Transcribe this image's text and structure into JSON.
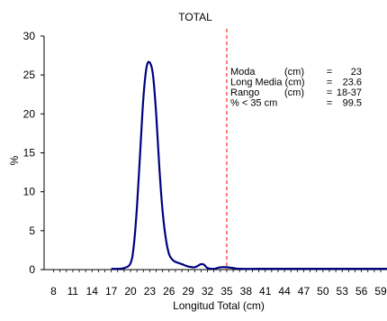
{
  "chart_data": {
    "type": "line",
    "title": "TOTAL",
    "xlabel": "Longitud Total (cm)",
    "ylabel": "%",
    "xlim": [
      8,
      60
    ],
    "ylim": [
      0,
      30
    ],
    "grid": false,
    "legend": "none",
    "x_ticks": [
      8,
      11,
      14,
      17,
      20,
      23,
      26,
      29,
      32,
      35,
      38,
      41,
      44,
      47,
      50,
      53,
      56,
      59
    ],
    "y_ticks": [
      0,
      5,
      10,
      15,
      20,
      25,
      30
    ],
    "series": [
      {
        "color": "#000080",
        "x": [
          17,
          18,
          19,
          20,
          20.5,
          21,
          21.5,
          22,
          22.5,
          23,
          23.5,
          24,
          24.5,
          25,
          25.5,
          26,
          26.5,
          27,
          28,
          29,
          30,
          31,
          31.5,
          32,
          33,
          34,
          35,
          36,
          37,
          40,
          45,
          50,
          55,
          60
        ],
        "y": [
          0.1,
          0.1,
          0.2,
          0.8,
          3.0,
          8.0,
          15.0,
          22.0,
          26.0,
          26.6,
          25.0,
          20.0,
          13.0,
          7.5,
          4.0,
          2.0,
          1.3,
          1.0,
          0.7,
          0.4,
          0.3,
          0.7,
          0.6,
          0.2,
          0.1,
          0.3,
          0.3,
          0.2,
          0.1,
          0.1,
          0.1,
          0.1,
          0.1,
          0.1
        ]
      }
    ],
    "reference_line": {
      "x": 35,
      "color": "#ff0000",
      "style": "dashed"
    },
    "annotations": [
      {
        "label": "Moda",
        "unit": "(cm)",
        "eq": "=",
        "value": "23"
      },
      {
        "label": "Long Media (cm)",
        "unit": "",
        "eq": "=",
        "value": "23.6"
      },
      {
        "label": "Rango",
        "unit": "(cm)",
        "eq": "=",
        "value": "18-37"
      },
      {
        "label": "% < 35 cm",
        "unit": "",
        "eq": "=",
        "value": "99.5"
      }
    ]
  }
}
